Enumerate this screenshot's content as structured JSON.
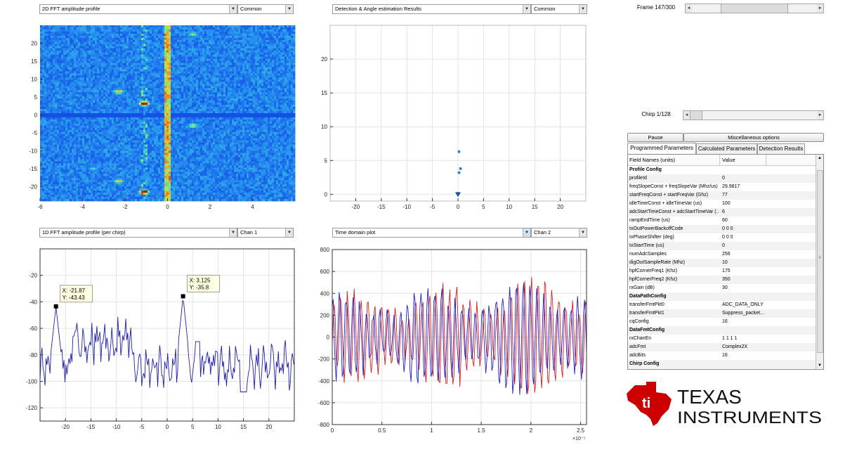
{
  "panels": {
    "fft2d": {
      "dropdown": "2D FFT amplitude profile",
      "option": "Common"
    },
    "detection": {
      "dropdown": "Detection & Angle estimation Results",
      "option": "Common"
    },
    "fft1d": {
      "dropdown": "1D FFT amplitude profile (per chirp)",
      "option": "Chan 1"
    },
    "timedomain": {
      "dropdown": "Time domain plot",
      "option": "Chan 2"
    }
  },
  "frame_label": "Frame 147/300",
  "frame_position": 0.49,
  "chirp_label": "Chirp 1/128",
  "chirp_position": 0.0,
  "buttons": {
    "pause": "Pause",
    "misc": "Miscellaneous options"
  },
  "tabs": [
    "Programmed Parameters",
    "Calculated Parameters",
    "Detection Results"
  ],
  "table": {
    "headers": [
      "Field Names   (units)",
      "Value"
    ],
    "rows": [
      {
        "name": "Profile Config",
        "value": "",
        "section": true
      },
      {
        "name": "profileId",
        "value": "0"
      },
      {
        "name": "freqSlopeConst + freqSlopeVar (Mhz/us)",
        "value": "29.9817"
      },
      {
        "name": "startFreqConst + startFreqVar (Ghz)",
        "value": "77"
      },
      {
        "name": "idleTimeConst + idleTimeVar (us)",
        "value": "100"
      },
      {
        "name": "adcStartTimeConst + adcStartTimeVar (...",
        "value": "6"
      },
      {
        "name": "rampEndTime (us)",
        "value": "60"
      },
      {
        "name": "txOutPowerBackoffCode",
        "value": "0 0 0"
      },
      {
        "name": "txPhaseShifter (deg)",
        "value": "0 0 0"
      },
      {
        "name": "txStartTime (us)",
        "value": "0"
      },
      {
        "name": "numAdcSamples",
        "value": "256"
      },
      {
        "name": "digOutSampleRate (Mhz)",
        "value": "10"
      },
      {
        "name": "hpfCornerFreq1 (Khz)",
        "value": "175"
      },
      {
        "name": "hpfCornerFreq2 (Khz)",
        "value": "350"
      },
      {
        "name": "rxGain (dB)",
        "value": "30"
      },
      {
        "name": "DataPathConfig",
        "value": "",
        "section": true
      },
      {
        "name": "transferFmtPkt0",
        "value": "ADC_DATA_ONLY"
      },
      {
        "name": "transferFmtPkt1",
        "value": "Suppress_packet..."
      },
      {
        "name": "cqConfig",
        "value": "16"
      },
      {
        "name": "DataFmtConfig",
        "value": "",
        "section": true
      },
      {
        "name": "rxChanEn",
        "value": "1 1 1 1"
      },
      {
        "name": "adcFmt",
        "value": "Complex2X"
      },
      {
        "name": "adcBits",
        "value": "16"
      },
      {
        "name": "Chirp Config",
        "value": "",
        "section": true
      }
    ]
  },
  "logo": {
    "line1": "TEXAS",
    "line2": "INSTRUMENTS",
    "color": "#cc0000"
  },
  "charts": {
    "fft2d": {
      "type": "heatmap",
      "xlim": [
        -6,
        6
      ],
      "ylim": [
        -24,
        25
      ],
      "xticks": [
        "-6",
        "-4",
        "-2",
        "0",
        "2",
        "4"
      ],
      "yticks": [
        "20",
        "15",
        "10",
        "5",
        "0",
        "-5",
        "-10",
        "-15",
        "-20"
      ]
    },
    "detection": {
      "type": "scatter",
      "xlim": [
        -25,
        25
      ],
      "ylim": [
        -1,
        25
      ],
      "xticks": [
        "-20",
        "-15",
        "-10",
        "-5",
        "0",
        "5",
        "10",
        "15",
        "20"
      ],
      "yticks": [
        "20",
        "15",
        "10",
        "5",
        "0"
      ],
      "points": [
        [
          0.2,
          6.3
        ],
        [
          0.5,
          3.8
        ],
        [
          0.2,
          3.2
        ]
      ],
      "origin_marker": [
        0,
        0
      ]
    },
    "fft1d": {
      "type": "line",
      "xlim": [
        -25,
        25
      ],
      "ylim": [
        -130,
        0
      ],
      "xticks": [
        "-20",
        "-15",
        "-10",
        "-5",
        "0",
        "5",
        "10",
        "15",
        "20"
      ],
      "yticks": [
        "-20",
        "-40",
        "-60",
        "-80",
        "-100",
        "-120"
      ],
      "color": "#1f1fa8",
      "datatips": [
        {
          "x": -21.87,
          "y": -43.43,
          "xlabel": "X: -21.87",
          "ylabel": "Y: -43.43"
        },
        {
          "x": 3.125,
          "y": -35.8,
          "xlabel": "X: 3.125",
          "ylabel": "Y: -35.8"
        }
      ]
    },
    "timedomain": {
      "type": "line",
      "xlim": [
        0,
        2.56
      ],
      "ylim": [
        -800,
        800
      ],
      "xticks": [
        "0",
        "0.5",
        "1",
        "1.5",
        "2",
        "2.5"
      ],
      "yticks": [
        "800",
        "600",
        "400",
        "200",
        "0",
        "-200",
        "-400",
        "-600",
        "-800"
      ],
      "exponent": "×10⁻⁵",
      "series_colors": [
        "#d42020",
        "#2020c8"
      ]
    }
  }
}
